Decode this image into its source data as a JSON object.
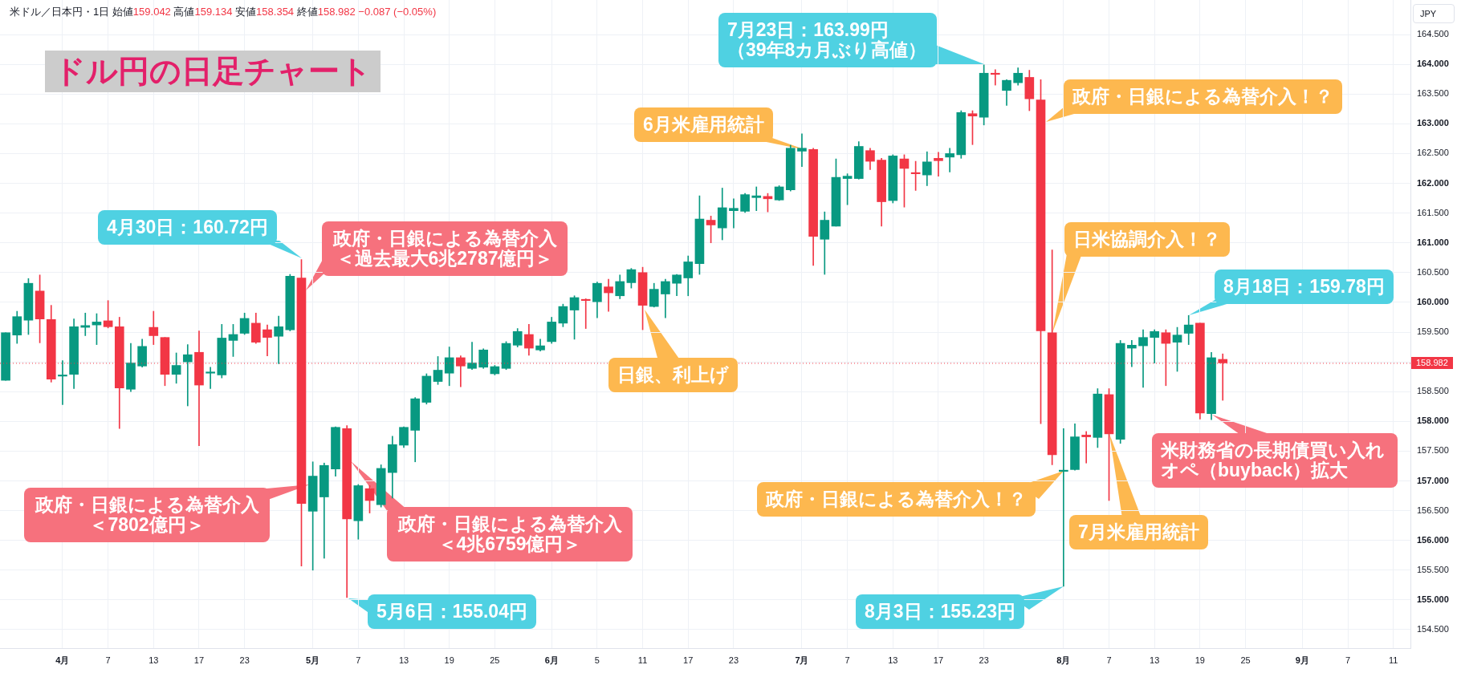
{
  "chart_data": {
    "type": "candlestick",
    "title": "ドル円の日足チャート",
    "subtitle": "米ドル／日本円・1日 始値159.042 高値159.134 安値158.354 終値158.982 −0.087 (−0.05%)",
    "ylabel": "JPY",
    "categories": [
      null,
      null,
      null,
      null,
      null,
      "4月",
      null,
      null,
      null,
      "7",
      null,
      null,
      null,
      "13",
      null,
      null,
      null,
      "17",
      null,
      null,
      null,
      "23",
      null,
      null,
      null,
      null,
      null,
      "5月",
      null,
      null,
      null,
      "7",
      null,
      null,
      null,
      "13",
      null,
      null,
      null,
      "19",
      null,
      null,
      null,
      "25",
      null,
      null,
      null,
      null,
      "6月",
      null,
      null,
      null,
      "5",
      null,
      null,
      null,
      "11",
      null,
      null,
      null,
      "17",
      null,
      null,
      null,
      "23",
      null,
      null,
      null,
      null,
      null,
      "7月",
      null,
      null,
      null,
      "7",
      null,
      null,
      null,
      "13",
      null,
      null,
      null,
      "17",
      null,
      null,
      null,
      "23",
      null,
      null,
      null,
      null,
      null,
      null,
      "8月",
      null,
      null,
      null,
      "7",
      null,
      null,
      null,
      "13",
      null,
      null,
      null,
      "19",
      null,
      null,
      null,
      "25",
      null,
      null,
      null,
      null,
      "9月",
      null,
      null,
      null,
      "7",
      null,
      null,
      null,
      "11",
      null
    ],
    "ohlc": [
      [
        158.69,
        159.49,
        158.69,
        159.49
      ],
      [
        159.45,
        159.85,
        159.31,
        159.76
      ],
      [
        159.7,
        160.4,
        159.46,
        160.32
      ],
      [
        160.19,
        160.46,
        159.32,
        159.72
      ],
      [
        159.71,
        159.95,
        158.66,
        158.71
      ],
      [
        158.76,
        159.02,
        158.28,
        158.78
      ],
      [
        158.79,
        159.72,
        158.55,
        159.59
      ],
      [
        159.58,
        159.82,
        159.44,
        159.61
      ],
      [
        159.62,
        159.81,
        159.29,
        159.67
      ],
      [
        159.69,
        160.03,
        159.57,
        159.59
      ],
      [
        159.59,
        159.75,
        157.88,
        158.56
      ],
      [
        158.54,
        159.31,
        158.5,
        158.98
      ],
      [
        158.93,
        159.38,
        158.91,
        159.26
      ],
      [
        159.58,
        159.85,
        159.29,
        159.44
      ],
      [
        159.41,
        159.41,
        158.6,
        158.79
      ],
      [
        158.79,
        159.15,
        158.64,
        158.94
      ],
      [
        159.0,
        159.29,
        158.26,
        159.12
      ],
      [
        159.16,
        159.52,
        157.59,
        158.61
      ],
      [
        158.81,
        158.91,
        158.55,
        158.82
      ],
      [
        158.78,
        159.63,
        158.73,
        159.4
      ],
      [
        159.36,
        159.63,
        159.09,
        159.46
      ],
      [
        159.48,
        159.82,
        159.46,
        159.73
      ],
      [
        159.65,
        159.82,
        159.31,
        159.33
      ],
      [
        159.54,
        159.62,
        159.1,
        159.41
      ],
      [
        159.43,
        159.77,
        158.97,
        159.59
      ],
      [
        159.54,
        160.47,
        159.52,
        160.44
      ],
      [
        160.41,
        160.72,
        155.57,
        156.62
      ],
      [
        156.49,
        157.32,
        155.5,
        157.08
      ],
      [
        156.73,
        157.3,
        155.7,
        157.26
      ],
      [
        157.2,
        157.91,
        157.08,
        157.9
      ],
      [
        157.88,
        157.93,
        155.04,
        156.36
      ],
      [
        156.33,
        156.94,
        156.02,
        156.92
      ],
      [
        156.87,
        156.92,
        156.46,
        156.67
      ],
      [
        156.6,
        157.27,
        156.56,
        157.21
      ],
      [
        157.14,
        157.75,
        156.71,
        157.61
      ],
      [
        157.6,
        157.91,
        157.56,
        157.9
      ],
      [
        157.85,
        158.4,
        157.32,
        158.38
      ],
      [
        158.32,
        158.8,
        158.29,
        158.76
      ],
      [
        158.67,
        159.09,
        158.62,
        158.86
      ],
      [
        158.81,
        159.25,
        158.6,
        159.07
      ],
      [
        159.07,
        159.1,
        158.58,
        158.93
      ],
      [
        158.89,
        159.33,
        158.87,
        158.98
      ],
      [
        158.91,
        159.22,
        158.89,
        159.2
      ],
      [
        158.8,
        158.94,
        158.78,
        158.92
      ],
      [
        158.89,
        159.34,
        158.87,
        159.31
      ],
      [
        159.28,
        159.56,
        159.25,
        159.51
      ],
      [
        159.46,
        159.63,
        159.11,
        159.23
      ],
      [
        159.2,
        159.38,
        159.18,
        159.27
      ],
      [
        159.34,
        159.75,
        159.31,
        159.67
      ],
      [
        159.65,
        159.97,
        159.59,
        159.93
      ],
      [
        159.87,
        160.11,
        159.38,
        160.08
      ],
      [
        160.05,
        160.06,
        159.56,
        160.03
      ],
      [
        160.01,
        160.34,
        159.74,
        160.32
      ],
      [
        160.26,
        160.39,
        159.85,
        160.16
      ],
      [
        160.11,
        160.46,
        160.06,
        160.35
      ],
      [
        160.33,
        160.57,
        160.24,
        160.55
      ],
      [
        160.5,
        160.59,
        159.54,
        159.95
      ],
      [
        159.93,
        160.32,
        159.92,
        160.22
      ],
      [
        160.14,
        160.39,
        159.74,
        160.35
      ],
      [
        160.32,
        160.47,
        160.11,
        160.46
      ],
      [
        160.41,
        160.78,
        160.11,
        160.68
      ],
      [
        160.65,
        161.79,
        160.47,
        161.4
      ],
      [
        161.38,
        161.45,
        161.0,
        161.3
      ],
      [
        161.25,
        161.92,
        161.05,
        161.59
      ],
      [
        161.54,
        161.74,
        161.25,
        161.58
      ],
      [
        161.53,
        161.83,
        161.51,
        161.81
      ],
      [
        161.76,
        161.94,
        161.54,
        161.79
      ],
      [
        161.78,
        161.83,
        161.52,
        161.74
      ],
      [
        161.72,
        161.96,
        161.71,
        161.94
      ],
      [
        161.89,
        162.64,
        161.87,
        162.59
      ],
      [
        162.54,
        162.83,
        162.28,
        162.59
      ],
      [
        162.57,
        162.59,
        160.62,
        161.11
      ],
      [
        161.06,
        161.52,
        160.47,
        161.38
      ],
      [
        161.28,
        162.41,
        161.28,
        162.1
      ],
      [
        162.08,
        162.16,
        161.64,
        162.12
      ],
      [
        162.08,
        162.7,
        162.07,
        162.62
      ],
      [
        162.55,
        162.59,
        162.23,
        162.37
      ],
      [
        162.39,
        162.42,
        161.28,
        161.69
      ],
      [
        161.71,
        162.48,
        161.67,
        162.46
      ],
      [
        162.41,
        162.48,
        161.6,
        162.25
      ],
      [
        162.18,
        162.37,
        161.88,
        162.16
      ],
      [
        162.14,
        162.53,
        161.96,
        162.36
      ],
      [
        162.42,
        162.52,
        162.12,
        162.38
      ],
      [
        162.44,
        162.59,
        162.19,
        162.5
      ],
      [
        162.48,
        163.22,
        162.42,
        163.19
      ],
      [
        163.17,
        163.22,
        162.65,
        163.13
      ],
      [
        163.11,
        163.99,
        162.98,
        163.85
      ],
      [
        163.85,
        163.91,
        163.65,
        163.83
      ],
      [
        163.56,
        163.74,
        163.31,
        163.73
      ],
      [
        163.69,
        163.94,
        163.65,
        163.85
      ],
      [
        163.78,
        163.9,
        163.22,
        163.42
      ],
      [
        163.4,
        163.74,
        157.96,
        159.52
      ],
      [
        159.49,
        160.88,
        157.27,
        157.44
      ],
      [
        157.16,
        157.88,
        155.23,
        157.18
      ],
      [
        157.19,
        157.96,
        157.18,
        157.74
      ],
      [
        157.77,
        157.83,
        157.3,
        157.74
      ],
      [
        157.73,
        158.55,
        157.56,
        158.46
      ],
      [
        158.45,
        158.55,
        156.67,
        157.79
      ],
      [
        157.7,
        159.36,
        157.63,
        159.31
      ],
      [
        159.23,
        159.36,
        158.92,
        159.28
      ],
      [
        159.27,
        159.54,
        158.57,
        159.41
      ],
      [
        159.41,
        159.54,
        158.98,
        159.51
      ],
      [
        159.49,
        159.54,
        158.6,
        159.31
      ],
      [
        159.33,
        159.58,
        158.84,
        159.45
      ],
      [
        159.48,
        159.78,
        159.29,
        159.62
      ],
      [
        159.65,
        159.65,
        158.04,
        158.14
      ],
      [
        158.13,
        159.16,
        158.03,
        159.07
      ],
      [
        159.042,
        159.134,
        158.354,
        158.982
      ],
      null,
      null,
      null,
      null,
      null,
      null,
      null,
      null,
      null,
      null,
      null,
      null,
      null,
      null,
      null,
      null
    ],
    "colors": [
      "#089981",
      "#089981",
      "#089981",
      "#f23645",
      "#f23645",
      "#089981",
      "#089981",
      "#089981",
      "#089981",
      "#f23645",
      "#f23645",
      "#089981",
      "#089981",
      "#f23645",
      "#f23645",
      "#089981",
      "#089981",
      "#f23645",
      "#089981",
      "#089981",
      "#089981",
      "#089981",
      "#f23645",
      "#f23645",
      "#089981",
      "#089981",
      "#f23645",
      "#089981",
      "#089981",
      "#089981",
      "#f23645",
      "#089981",
      "#f23645",
      "#089981",
      "#089981",
      "#089981",
      "#089981",
      "#089981",
      "#089981",
      "#089981",
      "#f23645",
      "#089981",
      "#089981",
      "#089981",
      "#089981",
      "#089981",
      "#f23645",
      "#089981",
      "#089981",
      "#089981",
      "#089981",
      "#f23645",
      "#089981",
      "#f23645",
      "#089981",
      "#089981",
      "#f23645",
      "#089981",
      "#089981",
      "#089981",
      "#089981",
      "#089981",
      "#f23645",
      "#089981",
      "#089981",
      "#089981",
      "#089981",
      "#f23645",
      "#089981",
      "#089981",
      "#089981",
      "#f23645",
      "#089981",
      "#089981",
      "#089981",
      "#089981",
      "#f23645",
      "#f23645",
      "#089981",
      "#f23645",
      "#f23645",
      "#089981",
      "#f23645",
      "#089981",
      "#089981",
      "#f23645",
      "#089981",
      "#f23645",
      "#089981",
      "#089981",
      "#f23645",
      "#f23645",
      "#f23645",
      "#089981",
      "#089981",
      "#f23645",
      "#089981",
      "#f23645",
      "#089981",
      "#089981",
      "#089981",
      "#089981",
      "#f23645",
      "#089981",
      "#089981",
      "#f23645",
      "#089981",
      "#f23645",
      null,
      null,
      null,
      null,
      null,
      null,
      null,
      null,
      null,
      null,
      null,
      null,
      null,
      null,
      null,
      null
    ],
    "ylim": [
      154.19,
      165.08
    ],
    "yticks": [
      {
        "value": 154.5,
        "label": "154.500"
      },
      {
        "value": 155,
        "label": "155.000"
      },
      {
        "value": 155.5,
        "label": "155.500"
      },
      {
        "value": 156,
        "label": "156.000"
      },
      {
        "value": 156.5,
        "label": "156.500"
      },
      {
        "value": 157,
        "label": "157.000"
      },
      {
        "value": 157.5,
        "label": "157.500"
      },
      {
        "value": 158,
        "label": "158.000"
      },
      {
        "value": 158.5,
        "label": "158.500"
      },
      {
        "value": 159,
        "label": null
      },
      {
        "value": 159.5,
        "label": "159.500"
      },
      {
        "value": 160,
        "label": "160.000"
      },
      {
        "value": 160.5,
        "label": "160.500"
      },
      {
        "value": 161,
        "label": "161.000"
      },
      {
        "value": 161.5,
        "label": "161.500"
      },
      {
        "value": 162,
        "label": "162.000"
      },
      {
        "value": 162.5,
        "label": "162.500"
      },
      {
        "value": 163,
        "label": "163.000"
      },
      {
        "value": 163.5,
        "label": "163.500"
      },
      {
        "value": 164,
        "label": "164.000"
      },
      {
        "value": 164.5,
        "label": "164.500"
      }
    ],
    "grid": true,
    "ref_lines": [
      {
        "axis": "y",
        "value": 158.982,
        "label": "158.982",
        "color": "#f23645",
        "line_style": "dotted"
      }
    ],
    "annotations": [
      "4月30日：160.72円",
      "政府・日銀による為替介入＜過去最大6兆2787億円＞",
      "政府・日銀による為替介入＜7802億円＞",
      "政府・日銀による為替介入＜4兆6759億円＞",
      "5月6日：155.04円",
      "日銀、利上げ",
      "6月米雇用統計",
      "7月23日：163.99円（39年8カ月ぶり高値）",
      "政府・日銀による為替介入！？",
      "日米協調介入！？",
      "政府・日銀による為替介入！？",
      "8月3日：155.23円",
      "7月米雇用統計",
      "8月18日：159.78円",
      "米財務省の長期債買い入れオペ（buyback）拡大"
    ]
  }
}
